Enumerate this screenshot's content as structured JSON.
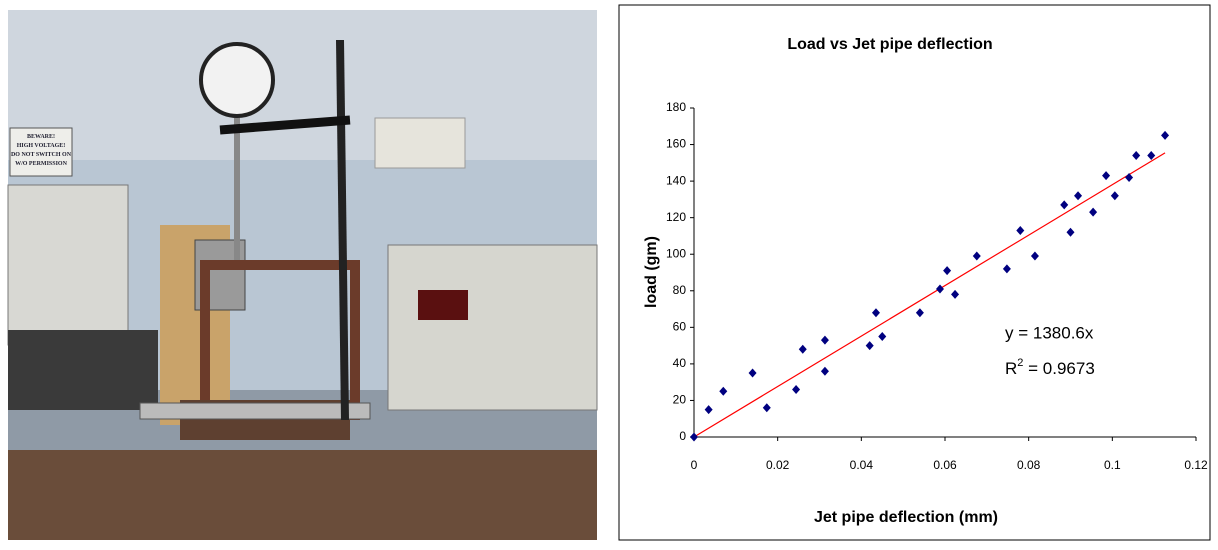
{
  "photo": {
    "sign": [
      "BEWARE!",
      "HIGH VOLTAGE!",
      "DO NOT SWITCH ON",
      "W/O PERMISSION"
    ]
  },
  "chart_data": {
    "type": "scatter",
    "title": "Load vs Jet pipe deflection",
    "x_label": "Jet pipe deflection (mm)",
    "y_label": "load (gm)",
    "x": [
      0,
      0.0035,
      0.007,
      0.014,
      0.0174,
      0.0244,
      0.026,
      0.0313,
      0.0313,
      0.042,
      0.0435,
      0.045,
      0.054,
      0.0588,
      0.0605,
      0.0624,
      0.0676,
      0.0748,
      0.078,
      0.0815,
      0.0885,
      0.09,
      0.0918,
      0.0954,
      0.0985,
      0.1006,
      0.104,
      0.1057,
      0.1093,
      0.1126
    ],
    "series": [
      {
        "color": "#000080",
        "values": [
          0,
          15,
          25,
          35,
          16,
          26,
          48,
          53,
          36,
          50,
          68,
          55,
          68,
          81,
          91,
          78,
          99,
          92,
          113,
          99,
          127,
          112,
          132,
          123,
          143,
          132,
          142,
          154,
          154,
          165
        ]
      }
    ],
    "trendline": {
      "slope": 1380.6,
      "color": "#ff0000",
      "equation": "y = 1380.6x",
      "r2_prefix": "R",
      "r2_power": "2",
      "r2_rest": " = 0.9673"
    },
    "xlim": [
      0,
      0.12
    ],
    "xticks": [
      0,
      0.02,
      0.04,
      0.06,
      0.08,
      0.1,
      0.12
    ],
    "ylim": [
      0,
      180
    ],
    "yticks": [
      0,
      20,
      40,
      60,
      80,
      100,
      120,
      140,
      160,
      180
    ],
    "grid": false
  }
}
